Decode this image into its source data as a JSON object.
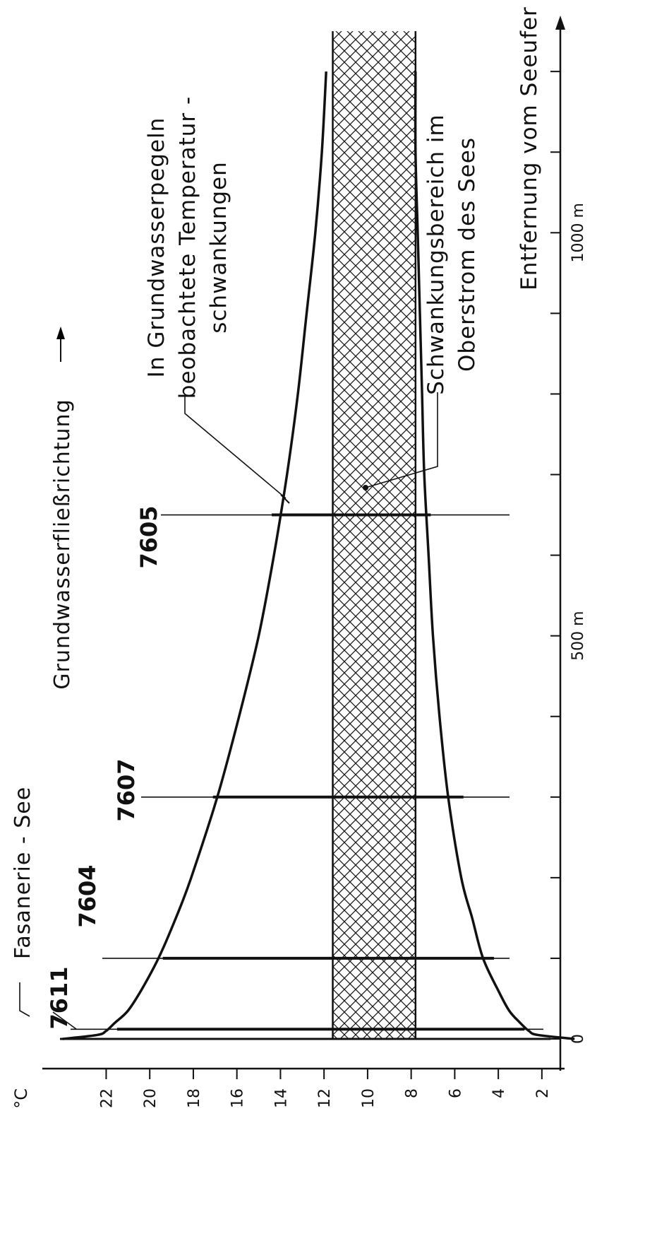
{
  "chart_data": {
    "type": "area",
    "orientation": "rotated-90-ccw",
    "title": "Fasanerie - See",
    "flow_direction_label": "Grundwasserfließrichtung",
    "y_unit_label": "°C",
    "x_label": "Entfernung vom Seeufer",
    "y_ticks": [
      2,
      4,
      6,
      8,
      10,
      12,
      14,
      16,
      18,
      20,
      22
    ],
    "y_tick_labels": [
      "2",
      "4",
      "6",
      "8",
      "10",
      "12",
      "14",
      "16",
      "18",
      "20",
      "22"
    ],
    "x_tick_step": 100,
    "x_range": [
      0,
      1250
    ],
    "y_range": [
      0,
      25
    ],
    "x_tick_labels": [
      {
        "x": 0,
        "label": "0"
      },
      {
        "x": 500,
        "label": "500 m"
      },
      {
        "x": 1000,
        "label": "1000 m"
      }
    ],
    "series": [
      {
        "name": "",
        "kind": "envelope-max",
        "x": [
          0,
          5,
          10,
          20,
          35,
          60,
          100,
          150,
          200,
          300,
          400,
          500,
          600,
          700,
          800,
          900,
          1000,
          1100,
          1200
        ],
        "y": [
          24.0,
          22.4,
          22.0,
          21.6,
          21.0,
          20.4,
          19.6,
          18.8,
          18.1,
          16.9,
          15.9,
          15.0,
          14.3,
          13.7,
          13.2,
          12.8,
          12.4,
          12.1,
          11.9
        ]
      },
      {
        "name": "",
        "kind": "envelope-min",
        "x": [
          0,
          5,
          10,
          20,
          35,
          60,
          100,
          150,
          200,
          300,
          400,
          500,
          600,
          700,
          800,
          900,
          1000,
          1100,
          1200
        ],
        "y": [
          0.5,
          2.2,
          2.6,
          3.0,
          3.5,
          4.0,
          4.7,
          5.2,
          5.7,
          6.3,
          6.7,
          7.0,
          7.2,
          7.4,
          7.5,
          7.6,
          7.7,
          7.8,
          7.8
        ]
      }
    ],
    "band": {
      "name": "Schwankungsbereich im Oberstrom des Sees",
      "y_min": 7.8,
      "y_max": 11.6,
      "x_max": 1250
    },
    "annotations": {
      "envelope": [
        "In Grundwasserpegeln",
        "beobachtete  Temperatur -",
        "schwankungen"
      ],
      "band": [
        "Schwankungsbereich  im",
        "Oberstrom  des  Sees"
      ]
    },
    "wells": [
      {
        "id": "7611",
        "x": 12,
        "y_min": 2.8,
        "y_max": 21.5
      },
      {
        "id": "7604",
        "x": 100,
        "y_min": 4.2,
        "y_max": 19.4
      },
      {
        "id": "7607",
        "x": 300,
        "y_min": 5.6,
        "y_max": 17.1
      },
      {
        "id": "7605",
        "x": 650,
        "y_min": 7.1,
        "y_max": 14.4
      }
    ],
    "colors": {
      "line": "#111111",
      "hatch": "#111111",
      "background": "#ffffff"
    }
  }
}
